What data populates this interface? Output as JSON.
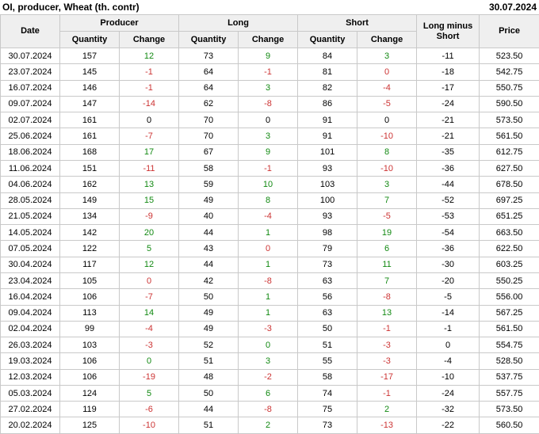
{
  "colors": {
    "positive": "#128912",
    "negative": "#cc3333",
    "neutral": "#000000",
    "header_bg": "#efefef",
    "border": "#c9c9c9"
  },
  "chart_data": {
    "type": "table",
    "title": "OI, producer, Wheat (th. contr)",
    "as_of_date": "30.07.2024",
    "group_labels": {
      "producer": "Producer",
      "long": "Long",
      "short": "Short"
    },
    "sub_labels": {
      "quantity": "Quantity",
      "change": "Change"
    },
    "other_labels": {
      "date": "Date",
      "long_minus_short": "Long minus Short",
      "price": "Price"
    },
    "rows": [
      {
        "date": "30.07.2024",
        "producer": {
          "quantity": 157,
          "change": 12,
          "change_color": "positive"
        },
        "long": {
          "quantity": 73,
          "change": 9,
          "change_color": "positive"
        },
        "short": {
          "quantity": 84,
          "change": 3,
          "change_color": "positive"
        },
        "long_minus_short": -11,
        "price": "523.50"
      },
      {
        "date": "23.07.2024",
        "producer": {
          "quantity": 145,
          "change": -1,
          "change_color": "negative"
        },
        "long": {
          "quantity": 64,
          "change": -1,
          "change_color": "negative"
        },
        "short": {
          "quantity": 81,
          "change": 0,
          "change_color": "negative"
        },
        "long_minus_short": -18,
        "price": "542.75"
      },
      {
        "date": "16.07.2024",
        "producer": {
          "quantity": 146,
          "change": -1,
          "change_color": "negative"
        },
        "long": {
          "quantity": 64,
          "change": 3,
          "change_color": "positive"
        },
        "short": {
          "quantity": 82,
          "change": -4,
          "change_color": "negative"
        },
        "long_minus_short": -17,
        "price": "550.75"
      },
      {
        "date": "09.07.2024",
        "producer": {
          "quantity": 147,
          "change": -14,
          "change_color": "negative"
        },
        "long": {
          "quantity": 62,
          "change": -8,
          "change_color": "negative"
        },
        "short": {
          "quantity": 86,
          "change": -5,
          "change_color": "negative"
        },
        "long_minus_short": -24,
        "price": "590.50"
      },
      {
        "date": "02.07.2024",
        "producer": {
          "quantity": 161,
          "change": 0,
          "change_color": "neutral"
        },
        "long": {
          "quantity": 70,
          "change": 0,
          "change_color": "neutral"
        },
        "short": {
          "quantity": 91,
          "change": 0,
          "change_color": "neutral"
        },
        "long_minus_short": -21,
        "price": "573.50"
      },
      {
        "date": "25.06.2024",
        "producer": {
          "quantity": 161,
          "change": -7,
          "change_color": "negative"
        },
        "long": {
          "quantity": 70,
          "change": 3,
          "change_color": "positive"
        },
        "short": {
          "quantity": 91,
          "change": -10,
          "change_color": "negative"
        },
        "long_minus_short": -21,
        "price": "561.50"
      },
      {
        "date": "18.06.2024",
        "producer": {
          "quantity": 168,
          "change": 17,
          "change_color": "positive"
        },
        "long": {
          "quantity": 67,
          "change": 9,
          "change_color": "positive"
        },
        "short": {
          "quantity": 101,
          "change": 8,
          "change_color": "positive"
        },
        "long_minus_short": -35,
        "price": "612.75"
      },
      {
        "date": "11.06.2024",
        "producer": {
          "quantity": 151,
          "change": -11,
          "change_color": "negative"
        },
        "long": {
          "quantity": 58,
          "change": -1,
          "change_color": "negative"
        },
        "short": {
          "quantity": 93,
          "change": -10,
          "change_color": "negative"
        },
        "long_minus_short": -36,
        "price": "627.50"
      },
      {
        "date": "04.06.2024",
        "producer": {
          "quantity": 162,
          "change": 13,
          "change_color": "positive"
        },
        "long": {
          "quantity": 59,
          "change": 10,
          "change_color": "positive"
        },
        "short": {
          "quantity": 103,
          "change": 3,
          "change_color": "positive"
        },
        "long_minus_short": -44,
        "price": "678.50"
      },
      {
        "date": "28.05.2024",
        "producer": {
          "quantity": 149,
          "change": 15,
          "change_color": "positive"
        },
        "long": {
          "quantity": 49,
          "change": 8,
          "change_color": "positive"
        },
        "short": {
          "quantity": 100,
          "change": 7,
          "change_color": "positive"
        },
        "long_minus_short": -52,
        "price": "697.25"
      },
      {
        "date": "21.05.2024",
        "producer": {
          "quantity": 134,
          "change": -9,
          "change_color": "negative"
        },
        "long": {
          "quantity": 40,
          "change": -4,
          "change_color": "negative"
        },
        "short": {
          "quantity": 93,
          "change": -5,
          "change_color": "negative"
        },
        "long_minus_short": -53,
        "price": "651.25"
      },
      {
        "date": "14.05.2024",
        "producer": {
          "quantity": 142,
          "change": 20,
          "change_color": "positive"
        },
        "long": {
          "quantity": 44,
          "change": 1,
          "change_color": "positive"
        },
        "short": {
          "quantity": 98,
          "change": 19,
          "change_color": "positive"
        },
        "long_minus_short": -54,
        "price": "663.50"
      },
      {
        "date": "07.05.2024",
        "producer": {
          "quantity": 122,
          "change": 5,
          "change_color": "positive"
        },
        "long": {
          "quantity": 43,
          "change": 0,
          "change_color": "negative"
        },
        "short": {
          "quantity": 79,
          "change": 6,
          "change_color": "positive"
        },
        "long_minus_short": -36,
        "price": "622.50"
      },
      {
        "date": "30.04.2024",
        "producer": {
          "quantity": 117,
          "change": 12,
          "change_color": "positive"
        },
        "long": {
          "quantity": 44,
          "change": 1,
          "change_color": "positive"
        },
        "short": {
          "quantity": 73,
          "change": 11,
          "change_color": "positive"
        },
        "long_minus_short": -30,
        "price": "603.25"
      },
      {
        "date": "23.04.2024",
        "producer": {
          "quantity": 105,
          "change": 0,
          "change_color": "negative"
        },
        "long": {
          "quantity": 42,
          "change": -8,
          "change_color": "negative"
        },
        "short": {
          "quantity": 63,
          "change": 7,
          "change_color": "positive"
        },
        "long_minus_short": -20,
        "price": "550.25"
      },
      {
        "date": "16.04.2024",
        "producer": {
          "quantity": 106,
          "change": -7,
          "change_color": "negative"
        },
        "long": {
          "quantity": 50,
          "change": 1,
          "change_color": "positive"
        },
        "short": {
          "quantity": 56,
          "change": -8,
          "change_color": "negative"
        },
        "long_minus_short": -5,
        "price": "556.00"
      },
      {
        "date": "09.04.2024",
        "producer": {
          "quantity": 113,
          "change": 14,
          "change_color": "positive"
        },
        "long": {
          "quantity": 49,
          "change": 1,
          "change_color": "positive"
        },
        "short": {
          "quantity": 63,
          "change": 13,
          "change_color": "positive"
        },
        "long_minus_short": -14,
        "price": "567.25"
      },
      {
        "date": "02.04.2024",
        "producer": {
          "quantity": 99,
          "change": -4,
          "change_color": "negative"
        },
        "long": {
          "quantity": 49,
          "change": -3,
          "change_color": "negative"
        },
        "short": {
          "quantity": 50,
          "change": -1,
          "change_color": "negative"
        },
        "long_minus_short": -1,
        "price": "561.50"
      },
      {
        "date": "26.03.2024",
        "producer": {
          "quantity": 103,
          "change": -3,
          "change_color": "negative"
        },
        "long": {
          "quantity": 52,
          "change": 0,
          "change_color": "positive"
        },
        "short": {
          "quantity": 51,
          "change": -3,
          "change_color": "negative"
        },
        "long_minus_short": 0,
        "price": "554.75"
      },
      {
        "date": "19.03.2024",
        "producer": {
          "quantity": 106,
          "change": 0,
          "change_color": "positive"
        },
        "long": {
          "quantity": 51,
          "change": 3,
          "change_color": "positive"
        },
        "short": {
          "quantity": 55,
          "change": -3,
          "change_color": "negative"
        },
        "long_minus_short": -4,
        "price": "528.50"
      },
      {
        "date": "12.03.2024",
        "producer": {
          "quantity": 106,
          "change": -19,
          "change_color": "negative"
        },
        "long": {
          "quantity": 48,
          "change": -2,
          "change_color": "negative"
        },
        "short": {
          "quantity": 58,
          "change": -17,
          "change_color": "negative"
        },
        "long_minus_short": -10,
        "price": "537.75"
      },
      {
        "date": "05.03.2024",
        "producer": {
          "quantity": 124,
          "change": 5,
          "change_color": "positive"
        },
        "long": {
          "quantity": 50,
          "change": 6,
          "change_color": "positive"
        },
        "short": {
          "quantity": 74,
          "change": -1,
          "change_color": "negative"
        },
        "long_minus_short": -24,
        "price": "557.75"
      },
      {
        "date": "27.02.2024",
        "producer": {
          "quantity": 119,
          "change": -6,
          "change_color": "negative"
        },
        "long": {
          "quantity": 44,
          "change": -8,
          "change_color": "negative"
        },
        "short": {
          "quantity": 75,
          "change": 2,
          "change_color": "positive"
        },
        "long_minus_short": -32,
        "price": "573.50"
      },
      {
        "date": "20.02.2024",
        "producer": {
          "quantity": 125,
          "change": -10,
          "change_color": "negative"
        },
        "long": {
          "quantity": 51,
          "change": 2,
          "change_color": "positive"
        },
        "short": {
          "quantity": 73,
          "change": -13,
          "change_color": "negative"
        },
        "long_minus_short": -22,
        "price": "560.50"
      }
    ]
  }
}
